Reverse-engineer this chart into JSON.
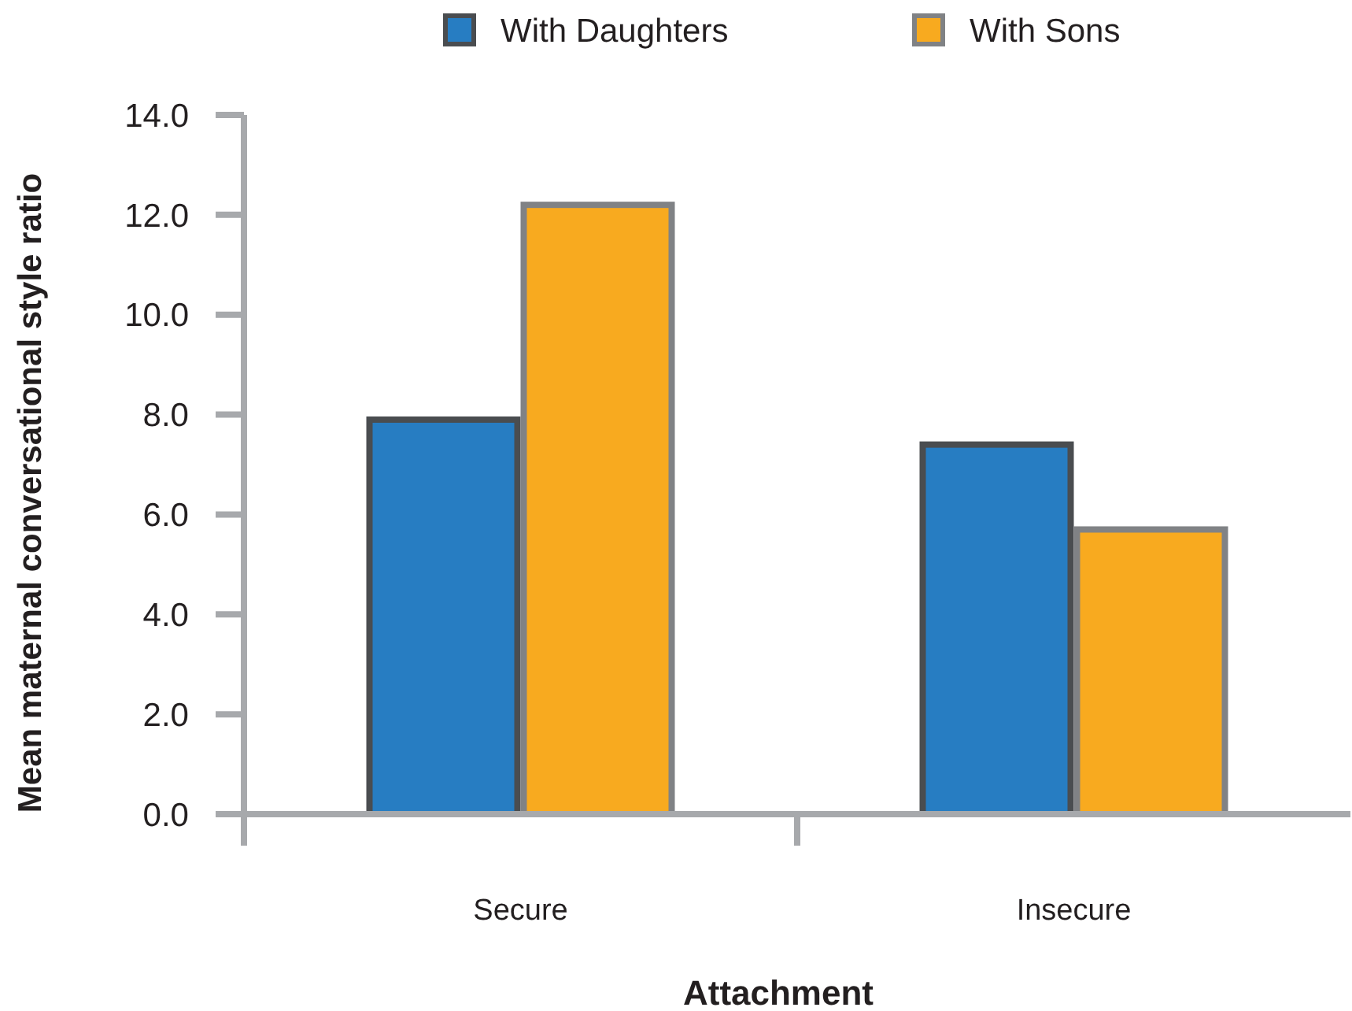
{
  "chart_data": {
    "type": "bar",
    "xlabel": "Attachment",
    "ylabel": "Mean maternal conversational style ratio",
    "categories": [
      "Secure",
      "Insecure"
    ],
    "series": [
      {
        "name": "With Daughters",
        "color": "#277dc2",
        "values": [
          7.9,
          7.4
        ]
      },
      {
        "name": "With Sons",
        "color": "#f8aa1f",
        "values": [
          12.2,
          5.7
        ]
      }
    ],
    "ylim": [
      0,
      14
    ],
    "yticks": [
      {
        "value": 0,
        "label": "0.0"
      },
      {
        "value": 2,
        "label": "2.0"
      },
      {
        "value": 4,
        "label": "4.0"
      },
      {
        "value": 6,
        "label": "6.0"
      },
      {
        "value": 8,
        "label": "8.0"
      },
      {
        "value": 10,
        "label": "10.0"
      },
      {
        "value": 12,
        "label": "12.0"
      },
      {
        "value": 14,
        "label": "14.0"
      }
    ],
    "grid": false,
    "legend": "top"
  }
}
